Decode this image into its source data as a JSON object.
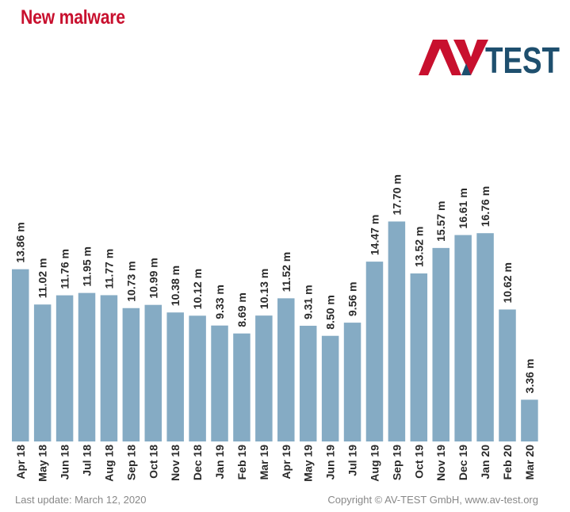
{
  "title": "New malware",
  "logo": {
    "text_av": "AV",
    "text_test": "TEST",
    "color_red": "#c8102e",
    "color_blue": "#1e4f6e"
  },
  "footer": {
    "last_update": "Last update: March 12, 2020",
    "copyright": "Copyright © AV-TEST GmbH, www.av-test.org"
  },
  "chart_data": {
    "type": "bar",
    "title": "New malware",
    "xlabel": "",
    "ylabel": "",
    "unit_suffix": " m",
    "ylim": [
      0,
      20
    ],
    "grid": false,
    "bar_color": "#85abc4",
    "categories": [
      "Apr 18",
      "May 18",
      "Jun 18",
      "Jul 18",
      "Aug 18",
      "Sep 18",
      "Oct 18",
      "Nov 18",
      "Dec 18",
      "Jan 19",
      "Feb 19",
      "Mar 19",
      "Apr 19",
      "May 19",
      "Jun 19",
      "Jul 19",
      "Aug 19",
      "Sep 19",
      "Oct 19",
      "Nov 19",
      "Dec 19",
      "Jan 20",
      "Feb 20",
      "Mar 20"
    ],
    "values": [
      13.86,
      11.02,
      11.76,
      11.95,
      11.77,
      10.73,
      10.99,
      10.38,
      10.12,
      9.33,
      8.69,
      10.13,
      11.52,
      9.31,
      8.5,
      9.56,
      14.47,
      17.7,
      13.52,
      15.57,
      16.61,
      16.76,
      10.62,
      3.36
    ],
    "value_labels": [
      "13.86 m",
      "11.02 m",
      "11.76 m",
      "11.95 m",
      "11.77 m",
      "10.73 m",
      "10.99 m",
      "10.38 m",
      "10.12 m",
      "9.33 m",
      "8.69 m",
      "10.13 m",
      "11.52 m",
      "9.31 m",
      "8.50 m",
      "9.56 m",
      "14.47 m",
      "17.70 m",
      "13.52 m",
      "15.57 m",
      "16.61 m",
      "16.76 m",
      "10.62 m",
      "3.36 m"
    ]
  }
}
